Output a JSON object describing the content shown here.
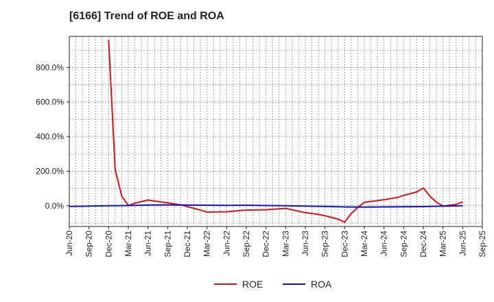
{
  "chart_data": {
    "type": "line",
    "title": "[6166]  Trend of ROE and ROA",
    "xlabel": "",
    "ylabel": "",
    "ylim": [
      -120,
      980
    ],
    "yticks": [
      0,
      200,
      400,
      600,
      800
    ],
    "ytick_labels": [
      "0.0%",
      "200.0%",
      "400.0%",
      "600.0%",
      "800.0%"
    ],
    "x_tick_labels": [
      "Jun-20",
      "Sep-20",
      "Dec-20",
      "Mar-21",
      "Jun-21",
      "Sep-21",
      "Dec-21",
      "Mar-22",
      "Jun-22",
      "Sep-22",
      "Dec-22",
      "Mar-23",
      "Jun-23",
      "Sep-23",
      "Dec-23",
      "Mar-24",
      "Jun-24",
      "Sep-24",
      "Dec-24",
      "Mar-25",
      "Jun-25",
      "Sep-25"
    ],
    "x_range_quarters": [
      0,
      21
    ],
    "grid": true,
    "legend": "bottom-center",
    "series": [
      {
        "name": "ROE",
        "color": "#dd1111",
        "points": [
          [
            2.0,
            960
          ],
          [
            2.33,
            210
          ],
          [
            2.67,
            55
          ],
          [
            3.0,
            2
          ],
          [
            3.33,
            15
          ],
          [
            4.0,
            33
          ],
          [
            4.67,
            22
          ],
          [
            5.0,
            17
          ],
          [
            5.67,
            5
          ],
          [
            6.0,
            -5
          ],
          [
            6.67,
            -25
          ],
          [
            7.0,
            -37
          ],
          [
            7.67,
            -35
          ],
          [
            8.0,
            -35
          ],
          [
            8.67,
            -28
          ],
          [
            9.0,
            -25
          ],
          [
            10.0,
            -23
          ],
          [
            10.67,
            -18
          ],
          [
            11.0,
            -15
          ],
          [
            11.67,
            -32
          ],
          [
            12.0,
            -40
          ],
          [
            12.67,
            -50
          ],
          [
            13.0,
            -58
          ],
          [
            13.67,
            -78
          ],
          [
            14.0,
            -95
          ],
          [
            14.33,
            -45
          ],
          [
            14.67,
            -10
          ],
          [
            15.0,
            20
          ],
          [
            15.67,
            30
          ],
          [
            16.0,
            35
          ],
          [
            16.67,
            48
          ],
          [
            17.0,
            60
          ],
          [
            17.67,
            80
          ],
          [
            18.0,
            103
          ],
          [
            18.33,
            55
          ],
          [
            18.67,
            20
          ],
          [
            19.0,
            -2
          ],
          [
            19.67,
            8
          ],
          [
            20.0,
            22
          ]
        ]
      },
      {
        "name": "ROA",
        "color": "#1111cc",
        "points": [
          [
            0.0,
            -4
          ],
          [
            1.0,
            -2
          ],
          [
            2.0,
            0
          ],
          [
            3.0,
            1
          ],
          [
            4.0,
            4
          ],
          [
            5.0,
            5
          ],
          [
            6.0,
            4
          ],
          [
            7.0,
            3
          ],
          [
            8.0,
            2
          ],
          [
            9.0,
            3
          ],
          [
            10.0,
            1
          ],
          [
            11.0,
            0
          ],
          [
            12.0,
            -2
          ],
          [
            13.0,
            -4
          ],
          [
            14.0,
            -7
          ],
          [
            15.0,
            -8
          ],
          [
            16.0,
            -7
          ],
          [
            17.0,
            -6
          ],
          [
            18.0,
            -5
          ],
          [
            19.0,
            -2
          ],
          [
            20.0,
            0
          ]
        ]
      }
    ]
  }
}
